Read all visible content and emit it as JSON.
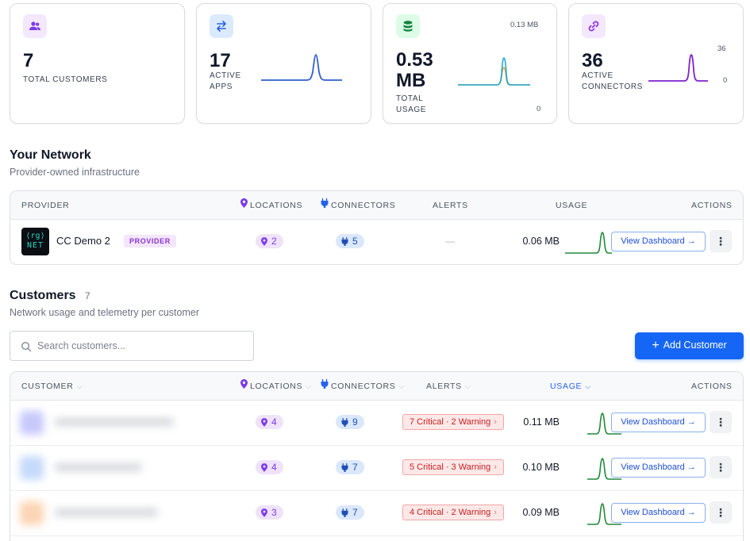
{
  "stats": [
    {
      "value": "7",
      "label": "Total Customers",
      "icon": "users-icon",
      "color": "#7c3aed",
      "bg": "#f3e8ff"
    },
    {
      "value": "17",
      "label_lines": [
        "Active",
        "Apps"
      ],
      "icon": "arrows-swap-icon",
      "color": "#2563eb",
      "bg": "#dbeafe"
    },
    {
      "value_lines": [
        "0.53",
        "MB"
      ],
      "label_lines": [
        "Total",
        "Usage"
      ],
      "icon": "database-icon",
      "color": "#15803d",
      "bg": "#dcfce7",
      "max_label": "0.13 MB",
      "min_label": "0"
    },
    {
      "value": "36",
      "label_lines": [
        "Active",
        "Connectors"
      ],
      "icon": "link-icon",
      "color": "#9333ea",
      "bg": "#f3e8ff",
      "max_label": "36",
      "min_label": "0"
    }
  ],
  "network": {
    "title": "Your Network",
    "subtitle": "Provider-owned infrastructure",
    "headers": {
      "provider": "Provider",
      "locations": "Locations",
      "connectors": "Connectors",
      "alerts": "Alerts",
      "usage": "Usage",
      "actions": "Actions"
    },
    "row": {
      "logo_top": "⟨rg⟩",
      "logo_bottom": "NET",
      "name": "CC Demo 2",
      "badge": "Provider",
      "locations": "2",
      "connectors": "5",
      "alerts": "—",
      "usage": "0.06 MB",
      "action": "View Dashboard →",
      "more": "⋮"
    }
  },
  "customers": {
    "title": "Customers",
    "count": "7",
    "subtitle": "Network usage and telemetry per customer",
    "search_placeholder": "Search customers...",
    "add_button": "Add Customer",
    "headers": {
      "customer": "Customer",
      "locations": "Locations",
      "connectors": "Connectors",
      "alerts": "Alerts",
      "usage": "Usage",
      "actions": "Actions"
    },
    "rows": [
      {
        "avatar_color": "#c7c9fb",
        "locations": "4",
        "connectors": "9",
        "alerts": "7 Critical · 2 Warning",
        "usage": "0.11 MB",
        "action": "View Dashboard →",
        "more": "⋮"
      },
      {
        "avatar_color": "#c6dafb",
        "locations": "4",
        "connectors": "7",
        "alerts": "5 Critical · 3 Warning",
        "usage": "0.10 MB",
        "action": "View Dashboard →",
        "more": "⋮"
      },
      {
        "avatar_color": "#fcd5b5",
        "locations": "3",
        "connectors": "7",
        "alerts": "4 Critical · 2 Warning",
        "usage": "0.09 MB",
        "action": "View Dashboard →",
        "more": "⋮"
      }
    ]
  },
  "colors": {
    "accent": "#1666f5",
    "spark_green": "#1f8a3b",
    "spark_blue": "#2f5fd0",
    "spark_purple": "#7e22ce",
    "spark_cyan": "#22a8d8",
    "spark_orange": "#d9a441"
  }
}
